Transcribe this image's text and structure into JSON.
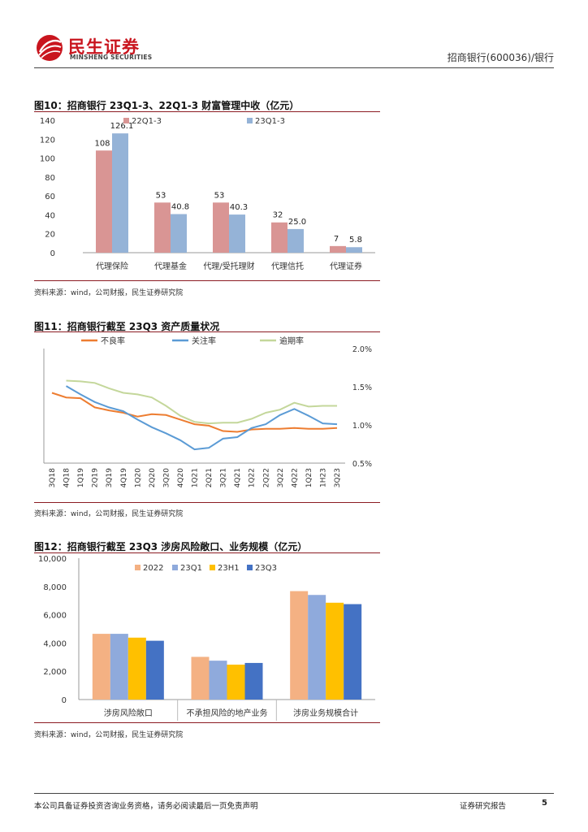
{
  "header": {
    "logo_cn": "民生证券",
    "logo_en": "MINSHENG SECURITIES",
    "right": "招商银行(600036)/银行"
  },
  "fig10": {
    "title": "图10：招商银行 23Q1-3、22Q1-3 财富管理中收（亿元）",
    "source": "资料来源：wind，公司财报，民生证券研究院"
  },
  "fig11": {
    "title": "图11：招商银行截至 23Q3 资产质量状况",
    "source": "资料来源：wind，公司财报，民生证券研究院"
  },
  "fig12": {
    "title": "图12：招商银行截至 23Q3 涉房风险敞口、业务规模（亿元）",
    "source": "资料来源：wind，公司财报，民生证券研究院"
  },
  "footer": {
    "left": "本公司具备证券投资咨询业务资格，请务必阅读最后一页免责声明",
    "right": "证券研究报告",
    "page": "5"
  },
  "colors": {
    "brand_red": "#c9151e",
    "rule": "#8b1b22"
  },
  "chart_data": [
    {
      "type": "bar",
      "categories": [
        "代理保险",
        "代理基金",
        "代理/受托理财",
        "代理信托",
        "代理证券"
      ],
      "series": [
        {
          "name": "22Q1-3",
          "values": [
            108,
            53,
            53,
            32,
            7
          ],
          "labels": [
            "108",
            "53",
            "53",
            "32",
            "7"
          ],
          "color": "#d99594"
        },
        {
          "name": "23Q1-3",
          "values": [
            126.1,
            40.8,
            40.3,
            25.0,
            5.8
          ],
          "labels": [
            "126.1",
            "40.8",
            "40.3",
            "25.0",
            "5.8"
          ],
          "color": "#95b3d7"
        }
      ],
      "ylim": [
        0,
        140
      ],
      "yticks": [
        "0",
        "20",
        "40",
        "60",
        "80",
        "100",
        "120",
        "140"
      ],
      "legend": "top"
    },
    {
      "type": "line",
      "categories": [
        "3Q18",
        "4Q18",
        "1Q19",
        "2Q19",
        "3Q19",
        "4Q19",
        "1Q20",
        "2Q20",
        "3Q20",
        "4Q20",
        "1Q21",
        "2Q21",
        "3Q21",
        "4Q21",
        "1Q22",
        "2Q22",
        "3Q22",
        "4Q22",
        "1Q23",
        "1H23",
        "3Q23"
      ],
      "series": [
        {
          "name": "不良率",
          "color": "#ed7d31",
          "values": [
            1.42,
            1.36,
            1.35,
            1.23,
            1.19,
            1.16,
            1.11,
            1.14,
            1.13,
            1.07,
            1.01,
            0.99,
            0.92,
            0.91,
            0.94,
            0.95,
            0.95,
            0.96,
            0.95,
            0.95,
            0.96
          ]
        },
        {
          "name": "关注率",
          "color": "#5b9bd5",
          "values": [
            null,
            1.51,
            1.4,
            1.3,
            1.23,
            1.18,
            1.07,
            0.97,
            0.89,
            0.8,
            0.68,
            0.7,
            0.82,
            0.84,
            0.96,
            1.01,
            1.13,
            1.21,
            1.12,
            1.02,
            1.01
          ]
        },
        {
          "name": "逾期率",
          "color": "#c4d79b",
          "values": [
            null,
            1.58,
            1.57,
            1.55,
            1.48,
            1.42,
            1.4,
            1.36,
            1.25,
            1.12,
            1.04,
            1.02,
            1.03,
            1.03,
            1.08,
            1.16,
            1.2,
            1.29,
            1.24,
            1.25,
            1.25
          ]
        }
      ],
      "ylim": [
        0.5,
        2.0
      ],
      "yticks": [
        "0.5%",
        "1.0%",
        "1.5%",
        "2.0%"
      ],
      "legend": "top"
    },
    {
      "type": "bar",
      "categories": [
        "涉房风险敞口",
        "不承担风险的地产业务",
        "涉房业务规模合计"
      ],
      "series": [
        {
          "name": "2022",
          "values": [
            4650,
            3020,
            7670
          ],
          "color": "#f4b183"
        },
        {
          "name": "23Q1",
          "values": [
            4650,
            2750,
            7400
          ],
          "color": "#8faadc"
        },
        {
          "name": "23H1",
          "values": [
            4380,
            2470,
            6850
          ],
          "color": "#ffc000"
        },
        {
          "name": "23Q3",
          "values": [
            4160,
            2590,
            6750
          ],
          "color": "#4472c4"
        }
      ],
      "ylim": [
        0,
        10000
      ],
      "yticks": [
        "0",
        "2,000",
        "4,000",
        "6,000",
        "8,000",
        "10,000"
      ],
      "legend": "top"
    }
  ]
}
